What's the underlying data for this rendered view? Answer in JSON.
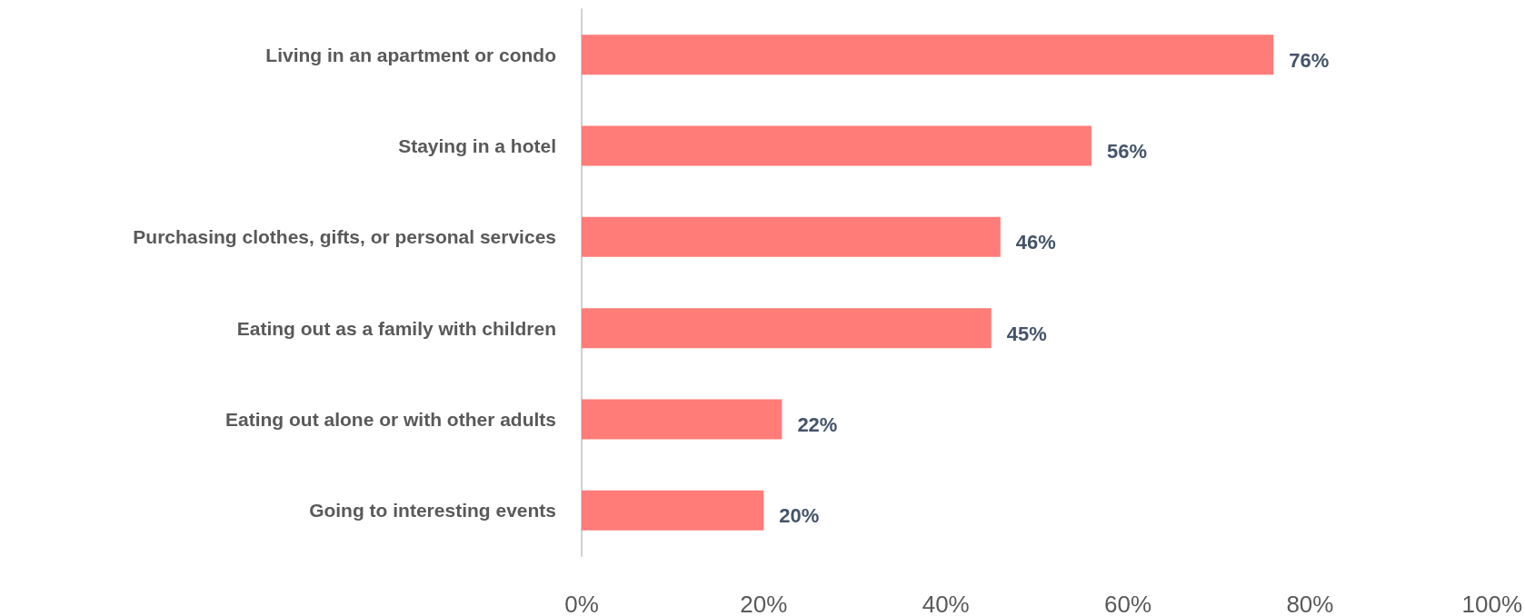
{
  "chart_data": {
    "type": "bar",
    "orientation": "horizontal",
    "categories": [
      "Living in an apartment or condo",
      "Staying in a hotel",
      "Purchasing clothes, gifts, or personal services",
      "Eating out as a family with children",
      "Eating out alone or with other adults",
      "Going to interesting events"
    ],
    "values": [
      76,
      56,
      46,
      45,
      22,
      20
    ],
    "value_labels": [
      "76%",
      "56%",
      "46%",
      "45%",
      "22%",
      "20%"
    ],
    "color": "#ff7c78",
    "xlim": [
      0,
      100
    ],
    "xticks": [
      {
        "value": 0,
        "label": "0%"
      },
      {
        "value": 20,
        "label": "20%"
      },
      {
        "value": 40,
        "label": "40%"
      },
      {
        "value": 60,
        "label": "60%"
      },
      {
        "value": 80,
        "label": "80%"
      },
      {
        "value": 100,
        "label": "100%"
      }
    ],
    "grid": false
  }
}
